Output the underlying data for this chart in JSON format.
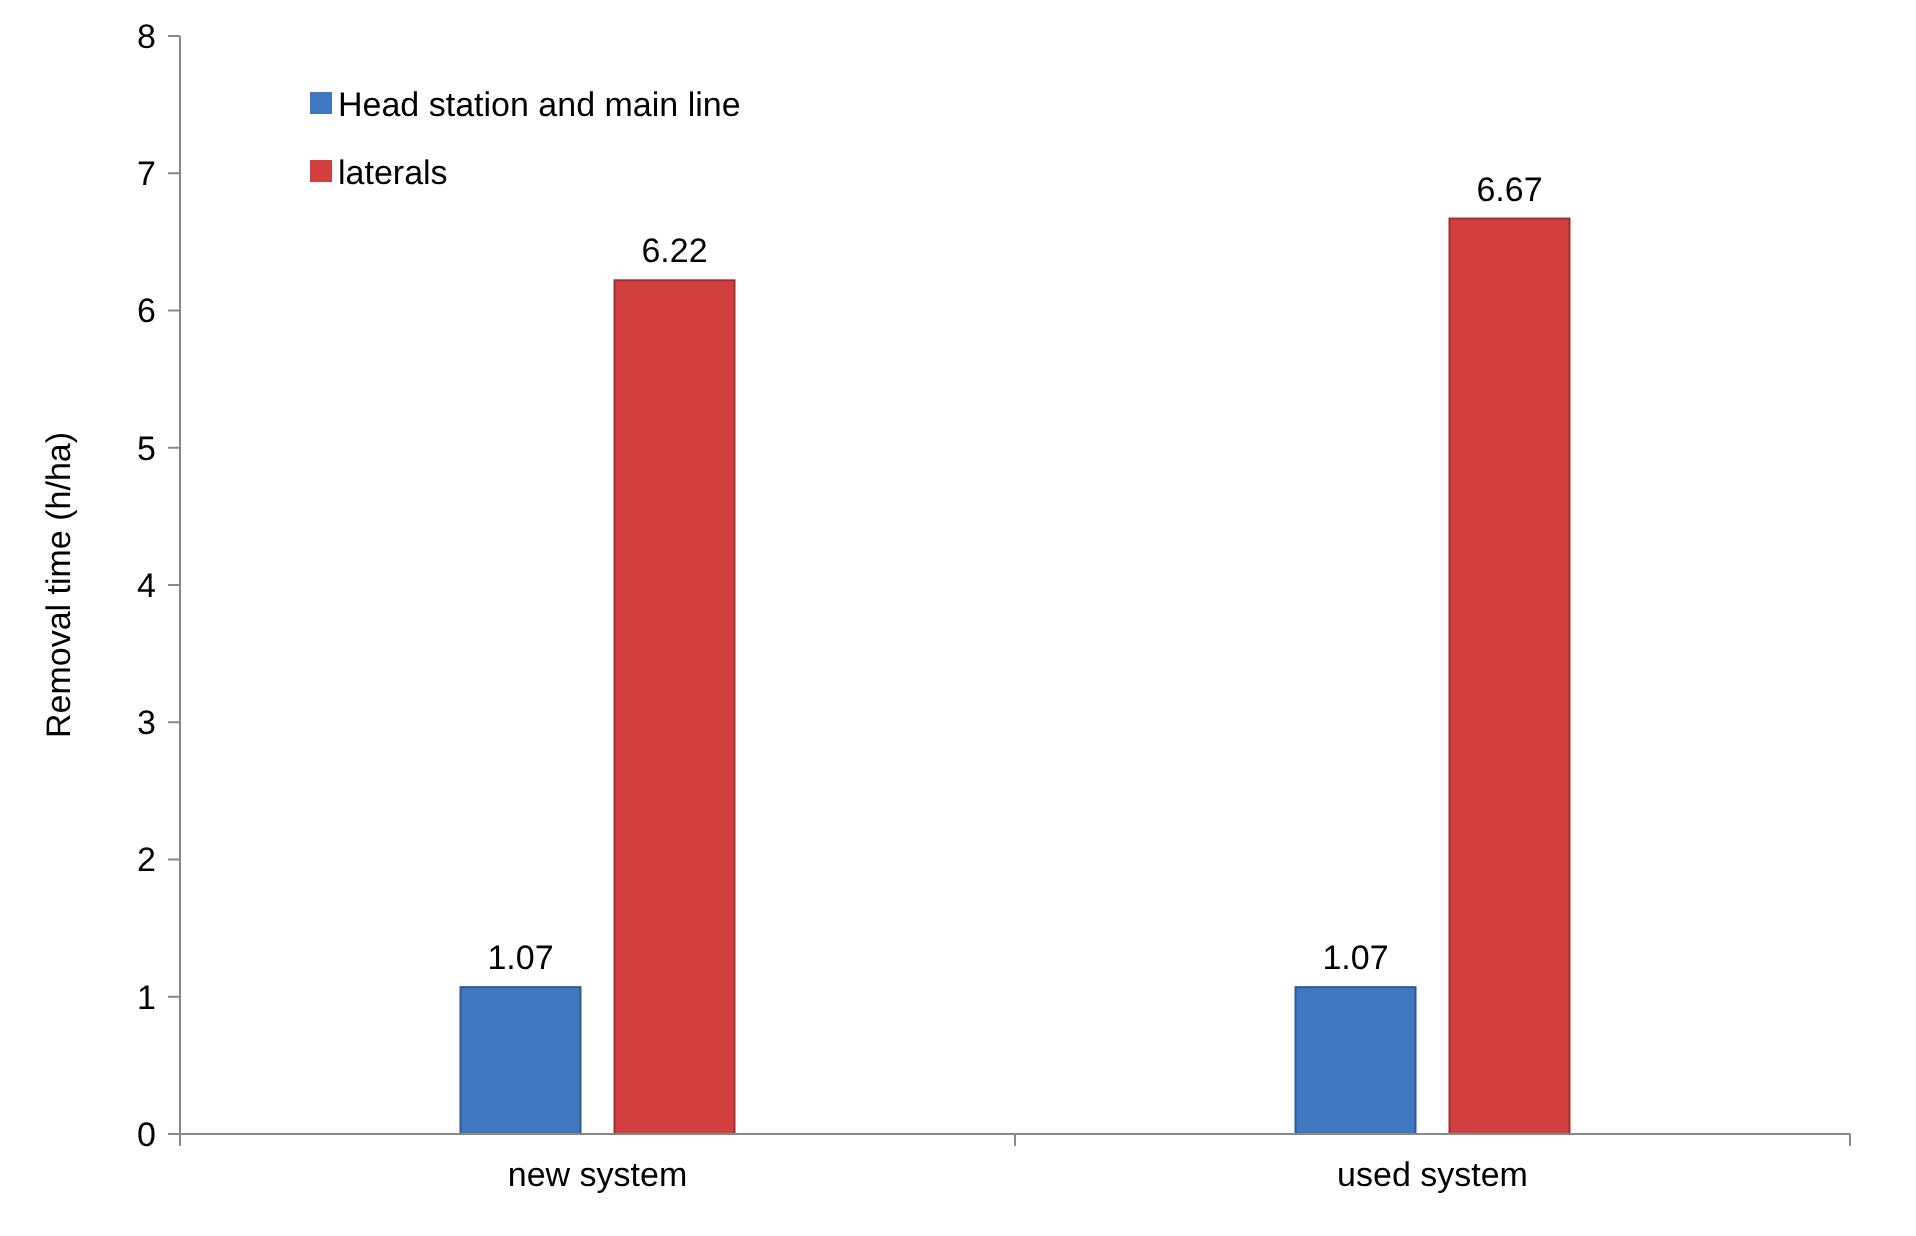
{
  "chart_data": {
    "type": "bar",
    "ylabel": "Removal time (h/ha)",
    "categories": [
      "new system",
      "used system"
    ],
    "series": [
      {
        "name": "Head station and main line",
        "color": "#3f78c0",
        "values": [
          1.07,
          1.07
        ]
      },
      {
        "name": "laterals",
        "color": "#d33f3f",
        "values": [
          6.22,
          6.67
        ]
      }
    ],
    "ylim": [
      0,
      8
    ],
    "yticks": [
      0,
      1,
      2,
      3,
      4,
      5,
      6,
      7,
      8
    ],
    "grid": false,
    "legend": "top left",
    "data_labels": true
  }
}
